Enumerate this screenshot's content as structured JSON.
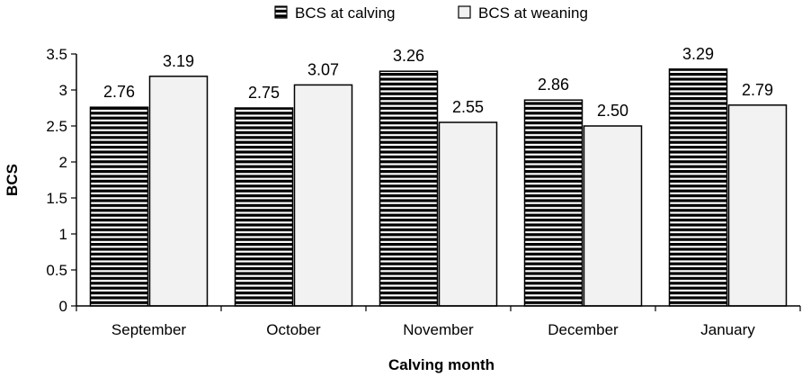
{
  "chart_data": {
    "type": "bar",
    "title": "",
    "xlabel": "Calving month",
    "ylabel": "BCS",
    "ylim": [
      0,
      3.5
    ],
    "yticks": [
      "0",
      "0.5",
      "1",
      "1.5",
      "2",
      "2.5",
      "3",
      "3.5"
    ],
    "categories": [
      "September",
      "October",
      "November",
      "December",
      "January"
    ],
    "series": [
      {
        "name": "BCS at calving",
        "values": [
          2.76,
          2.75,
          3.26,
          2.86,
          3.29
        ],
        "labels": [
          "2.76",
          "2.75",
          "3.26",
          "2.86",
          "3.29"
        ],
        "fill": "horizontal-stripes",
        "color": "#000000"
      },
      {
        "name": "BCS at weaning",
        "values": [
          3.19,
          3.07,
          2.55,
          2.5,
          2.79
        ],
        "labels": [
          "3.19",
          "3.07",
          "2.55",
          "2.50",
          "2.79"
        ],
        "fill": "light-gray",
        "color": "#f2f2f2"
      }
    ],
    "legend_position": "top-right",
    "grid": false
  }
}
